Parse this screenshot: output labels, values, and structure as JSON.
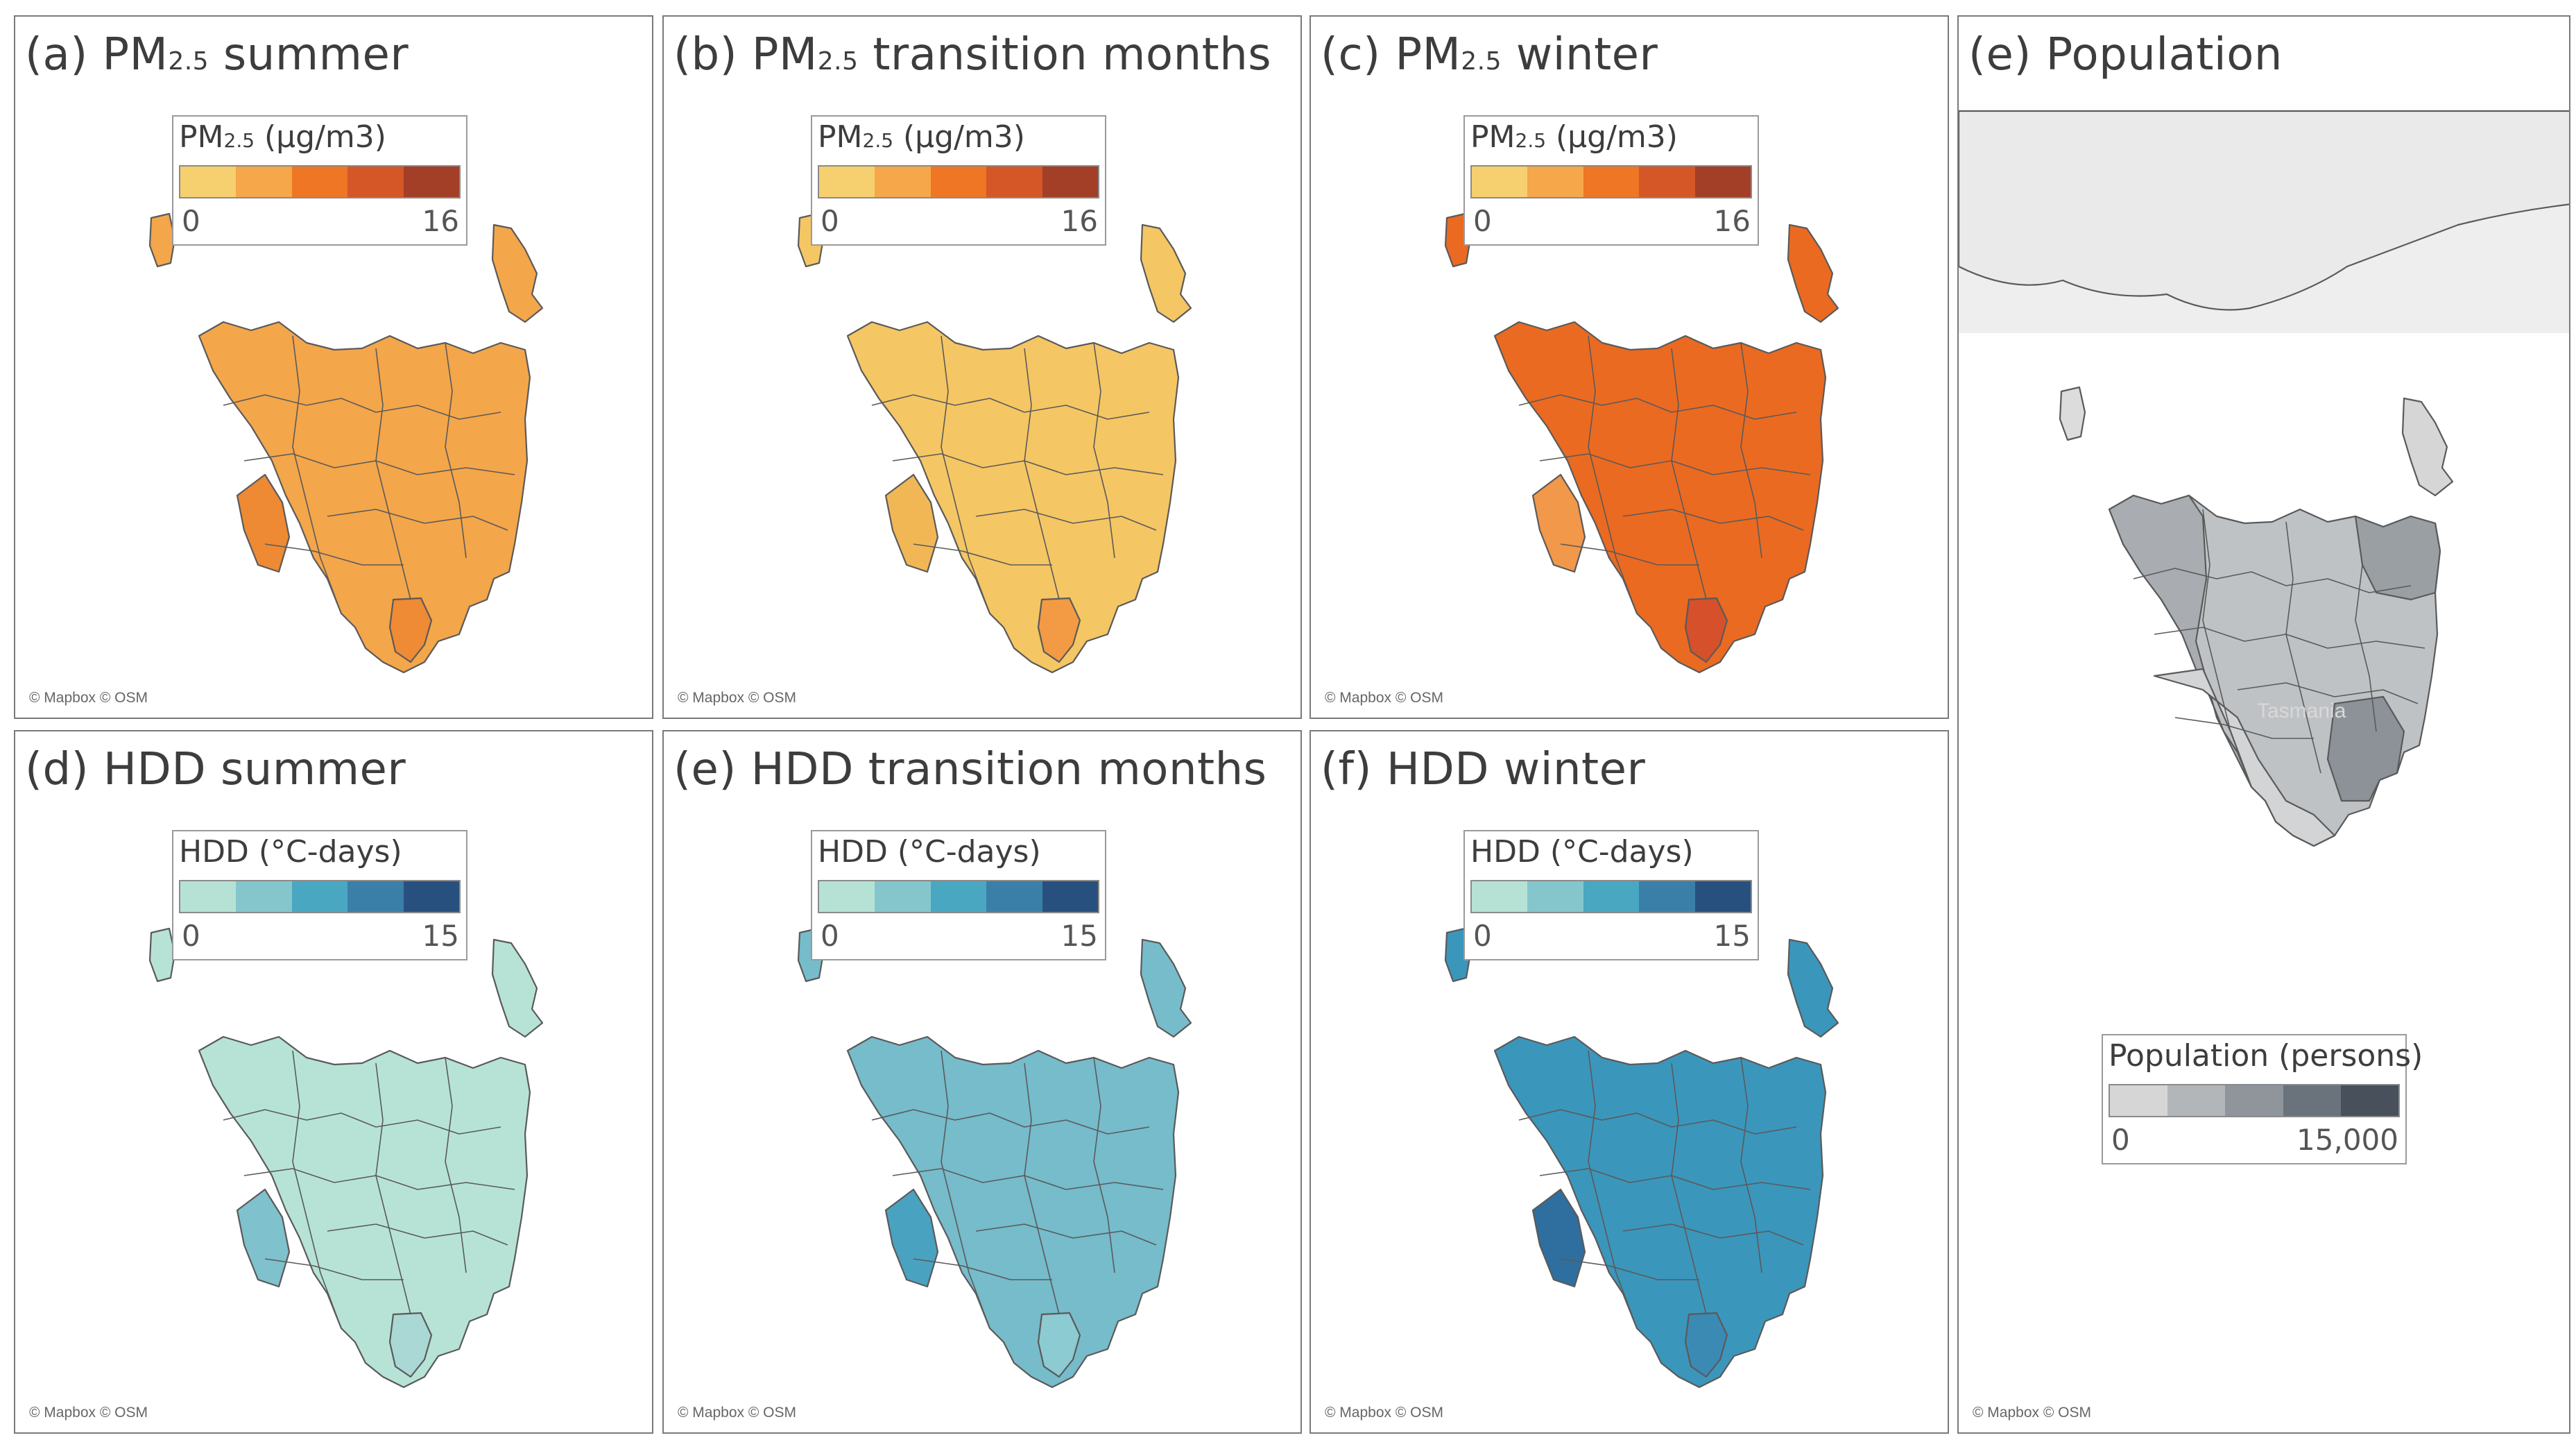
{
  "panels": {
    "a": {
      "title_pre": "(a) PM",
      "title_sub": "2.5",
      "title_post": " summer"
    },
    "b": {
      "title_pre": "(b) PM",
      "title_sub": "2.5",
      "title_post": " transition months"
    },
    "c": {
      "title_pre": "(c) PM",
      "title_sub": "2.5",
      "title_post": " winter"
    },
    "d": {
      "title": "(d) HDD summer"
    },
    "e": {
      "title": "(e) HDD transition months"
    },
    "f": {
      "title": "(f) HDD winter"
    },
    "pop": {
      "title": "(e) Population",
      "map_label": "Tasmania"
    }
  },
  "credit": "© Mapbox © OSM",
  "legends": {
    "pm": {
      "title_pre": "PM",
      "title_sub": "2.5",
      "title_post": " (µg/m3)",
      "min": "0",
      "max": "16",
      "colors": [
        "#f6cf6e",
        "#f5a74a",
        "#ee7625",
        "#d55627",
        "#a33f27"
      ]
    },
    "hdd": {
      "title": "HDD (°C-days)",
      "min": "0",
      "max": "15",
      "colors": [
        "#b6e2d6",
        "#85c6cd",
        "#4aa7c2",
        "#3a7fa8",
        "#28507e"
      ]
    },
    "pop": {
      "title": "Population (persons)",
      "min": "0",
      "max": "15,000",
      "colors": [
        "#d6d6d6",
        "#b3b6b9",
        "#8f959b",
        "#6a727b",
        "#47505b"
      ]
    }
  },
  "fills": {
    "a": {
      "base": "#f4a64a",
      "highlight": "#ee8a33",
      "se": "#ef8a35"
    },
    "b": {
      "base": "#f5c664",
      "highlight": "#f2b755",
      "se": "#f29a44"
    },
    "c": {
      "base": "#ea6a22",
      "highlight": "#f2984a",
      "se": "#d5502b"
    },
    "d": {
      "base": "#b7e3d7",
      "highlight": "#7fc1cc",
      "se": "#aad8d4"
    },
    "e": {
      "base": "#76bccb",
      "highlight": "#4aa2c1",
      "se": "#8ccbd1"
    },
    "f": {
      "base": "#3b96bb",
      "highlight": "#2f6f9f",
      "se": "#3b8ab4"
    },
    "pop": {
      "base": "#bfc2c5",
      "highlight": "#8c9298",
      "se": "#d3d4d5"
    }
  }
}
